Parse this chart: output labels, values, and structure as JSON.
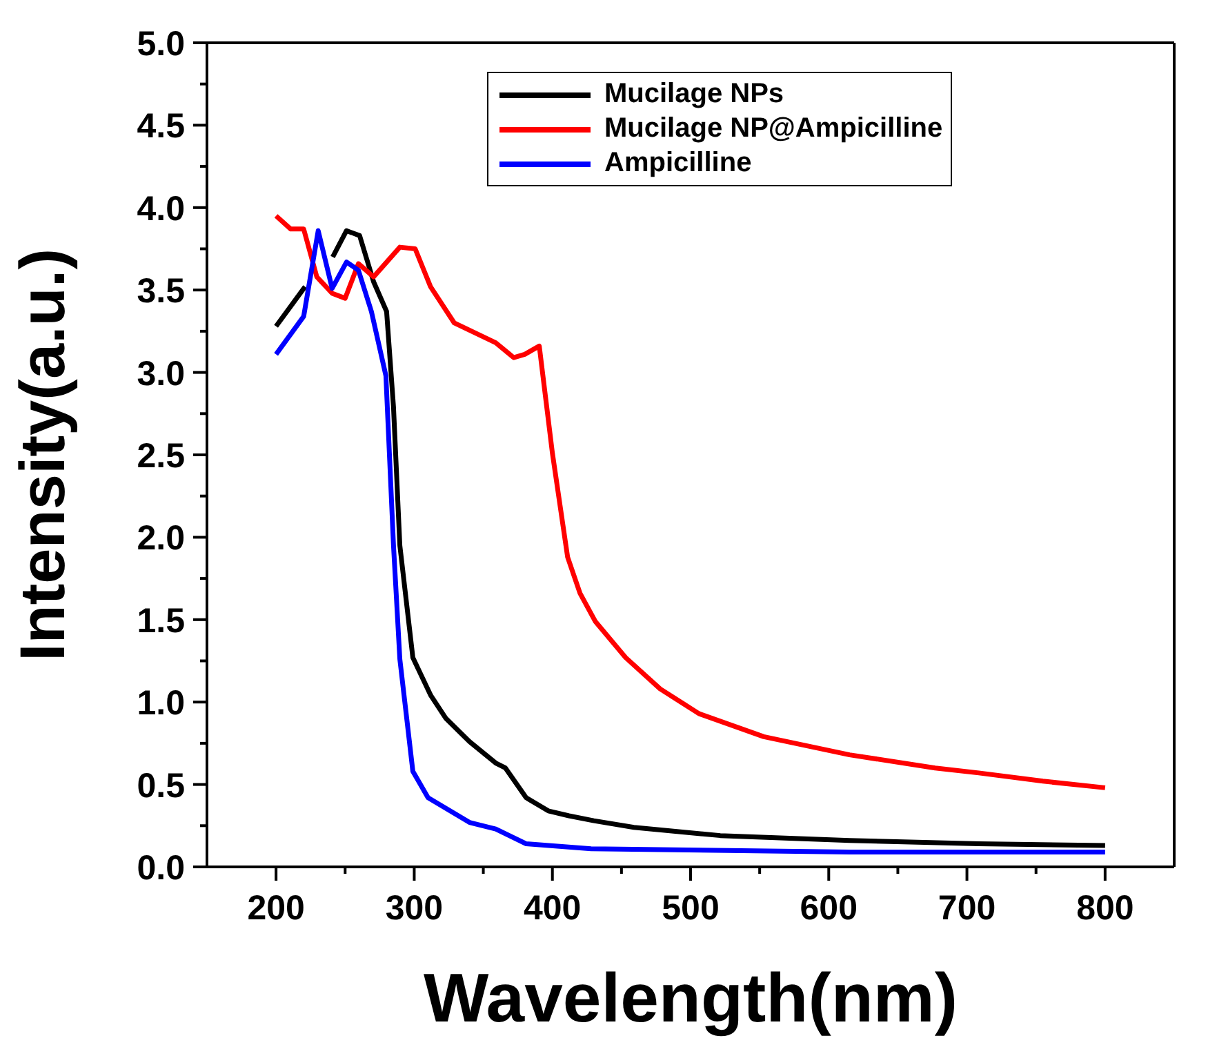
{
  "chart_data": {
    "type": "line",
    "xlabel": "Wavelength(nm)",
    "ylabel": "Intensity(a.u.)",
    "xlim": [
      150,
      850
    ],
    "xticks": [
      200,
      {
        "value": 250,
        "label": null
      },
      300,
      {
        "value": 350,
        "label": null
      },
      400,
      {
        "value": 450,
        "label": null
      },
      500,
      {
        "value": 550,
        "label": null
      },
      600,
      {
        "value": 650,
        "label": null
      },
      700,
      {
        "value": 750,
        "label": null
      },
      800
    ],
    "ylim": [
      0,
      5
    ],
    "yticks": [
      {
        "value": 0,
        "label": "0.0"
      },
      {
        "value": 0.25,
        "label": null
      },
      0.5,
      {
        "value": 0.75,
        "label": null
      },
      {
        "value": 1,
        "label": "1.0"
      },
      {
        "value": 1.25,
        "label": null
      },
      1.5,
      {
        "value": 1.75,
        "label": null
      },
      {
        "value": 2,
        "label": "2.0"
      },
      {
        "value": 2.25,
        "label": null
      },
      2.5,
      {
        "value": 2.75,
        "label": null
      },
      {
        "value": 3,
        "label": "3.0"
      },
      {
        "value": 3.25,
        "label": null
      },
      3.5,
      {
        "value": 3.75,
        "label": null
      },
      {
        "value": 4,
        "label": "4.0"
      },
      {
        "value": 4.25,
        "label": null
      },
      4.5,
      {
        "value": 4.75,
        "label": null
      },
      {
        "value": 5,
        "label": "5.0"
      }
    ],
    "legend": "top",
    "marker": "none",
    "line_style": "solid",
    "series": [
      {
        "name": "Mucilage NPs",
        "color": "#000000",
        "x": [
          200,
          221,
          230,
          241,
          251,
          260.5,
          270.6,
          280,
          285,
          289.6,
          299,
          312,
          323,
          340,
          359,
          366,
          381,
          397,
          412,
          430,
          459,
          521.5,
          615,
          708.6,
          800
        ],
        "values": [
          3.28,
          3.52,
          null,
          3.7,
          3.86,
          3.83,
          3.55,
          3.37,
          2.79,
          1.95,
          1.27,
          1.04,
          0.9,
          0.76,
          0.63,
          0.6,
          0.42,
          0.34,
          0.31,
          0.28,
          0.24,
          0.19,
          0.16,
          0.14,
          0.13
        ]
      },
      {
        "name": "Mucilage NP@Ampicilline",
        "color": "#ff0000",
        "x": [
          200,
          210.6,
          220,
          229.5,
          240.6,
          250,
          259.6,
          270.6,
          289.6,
          300.7,
          311.8,
          329,
          359,
          372,
          380,
          390.5,
          400,
          411,
          420,
          431,
          453,
          478,
          506,
          553,
          615,
          677,
          708.6,
          755,
          800
        ],
        "values": [
          3.95,
          3.87,
          3.87,
          3.58,
          3.48,
          3.45,
          3.66,
          3.58,
          3.76,
          3.75,
          3.52,
          3.3,
          3.18,
          3.09,
          3.11,
          3.16,
          2.51,
          1.88,
          1.66,
          1.49,
          1.27,
          1.08,
          0.93,
          0.79,
          0.68,
          0.6,
          0.57,
          0.52,
          0.48
        ]
      },
      {
        "name": "Ampicilline",
        "color": "#0000ff",
        "x": [
          200,
          220,
          230.5,
          240.6,
          251,
          259.6,
          269,
          279.5,
          285,
          289.6,
          299,
          310,
          340,
          359,
          381,
          428,
          615,
          800
        ],
        "values": [
          3.11,
          3.34,
          3.86,
          3.51,
          3.67,
          3.62,
          3.37,
          2.98,
          1.95,
          1.26,
          0.58,
          0.42,
          0.27,
          0.23,
          0.14,
          0.11,
          0.09,
          0.09
        ]
      }
    ]
  }
}
